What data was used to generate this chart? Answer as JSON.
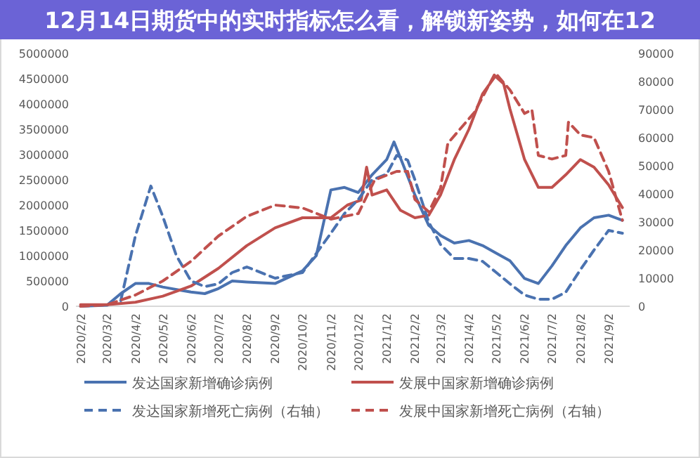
{
  "chart_data": {
    "type": "line",
    "title": "12月14日期货中的实时指标怎么看，解锁新姿势，如何在12",
    "xlim": [
      "2020-01-28",
      "2021-09-25"
    ],
    "xticks": [
      {
        "value": "2020-02-02",
        "label": "2020/2/2"
      },
      {
        "value": "2020-03-02",
        "label": "2020/3/2"
      },
      {
        "value": "2020-04-02",
        "label": "2020/4/2"
      },
      {
        "value": "2020-05-02",
        "label": "2020/5/2"
      },
      {
        "value": "2020-06-02",
        "label": "2020/6/2"
      },
      {
        "value": "2020-07-02",
        "label": "2020/7/2"
      },
      {
        "value": "2020-08-02",
        "label": "2020/8/2"
      },
      {
        "value": "2020-09-02",
        "label": "2020/9/2"
      },
      {
        "value": "2020-10-02",
        "label": "2020/10/2"
      },
      {
        "value": "2020-11-02",
        "label": "2020/11/2"
      },
      {
        "value": "2020-12-02",
        "label": "2020/12/2"
      },
      {
        "value": "2021-01-02",
        "label": "2021/1/2"
      },
      {
        "value": "2021-02-02",
        "label": "2021/2/2"
      },
      {
        "value": "2021-03-02",
        "label": "2021/3/2"
      },
      {
        "value": "2021-04-02",
        "label": "2021/4/2"
      },
      {
        "value": "2021-05-02",
        "label": "2021/5/2"
      },
      {
        "value": "2021-06-02",
        "label": "2021/6/2"
      },
      {
        "value": "2021-07-02",
        "label": "2021/7/2"
      },
      {
        "value": "2021-08-02",
        "label": "2021/8/2"
      },
      {
        "value": "2021-09-02",
        "label": "2021/9/2"
      }
    ],
    "ylim": [
      0,
      5000000
    ],
    "yticks": [
      0,
      500000,
      1000000,
      1500000,
      2000000,
      2500000,
      3000000,
      3500000,
      4000000,
      4500000,
      5000000
    ],
    "y2lim": [
      0,
      90000
    ],
    "y2ticks": [
      0,
      10000,
      20000,
      30000,
      40000,
      50000,
      60000,
      70000,
      80000,
      90000
    ],
    "legend": "bottom",
    "series": [
      {
        "name": "发达国家新增确诊病例",
        "color": "#4a72b0",
        "line_style": "solid",
        "x": [
          "2020-02-02",
          "2020-03-02",
          "2020-03-17",
          "2020-04-02",
          "2020-04-17",
          "2020-05-02",
          "2020-06-02",
          "2020-06-17",
          "2020-07-02",
          "2020-07-17",
          "2020-08-02",
          "2020-09-02",
          "2020-10-02",
          "2020-10-17",
          "2020-11-02",
          "2020-11-17",
          "2020-12-02",
          "2020-12-17",
          "2021-01-02",
          "2021-01-10",
          "2021-01-20",
          "2021-02-02",
          "2021-02-17",
          "2021-03-02",
          "2021-03-17",
          "2021-04-02",
          "2021-04-17",
          "2021-05-02",
          "2021-05-17",
          "2021-06-02",
          "2021-06-17",
          "2021-07-02",
          "2021-07-17",
          "2021-08-02",
          "2021-08-17",
          "2021-09-02",
          "2021-09-17"
        ],
        "values": [
          0,
          20000,
          250000,
          450000,
          450000,
          380000,
          280000,
          250000,
          350000,
          500000,
          480000,
          450000,
          700000,
          1000000,
          2300000,
          2350000,
          2250000,
          2600000,
          2900000,
          3250000,
          2800000,
          2200000,
          1600000,
          1400000,
          1250000,
          1300000,
          1200000,
          1050000,
          900000,
          550000,
          450000,
          800000,
          1200000,
          1550000,
          1750000,
          1800000,
          1700000
        ]
      },
      {
        "name": "发展中国家新增确诊病例",
        "color": "#c0504d",
        "line_style": "solid",
        "x": [
          "2020-02-02",
          "2020-03-02",
          "2020-04-02",
          "2020-05-02",
          "2020-06-02",
          "2020-07-02",
          "2020-08-02",
          "2020-09-02",
          "2020-10-02",
          "2020-11-02",
          "2020-11-20",
          "2020-12-05",
          "2020-12-11",
          "2020-12-17",
          "2021-01-02",
          "2021-01-17",
          "2021-02-02",
          "2021-02-17",
          "2021-03-02",
          "2021-03-17",
          "2021-04-02",
          "2021-04-17",
          "2021-05-01",
          "2021-05-10",
          "2021-05-17",
          "2021-06-02",
          "2021-06-17",
          "2021-07-02",
          "2021-07-17",
          "2021-08-02",
          "2021-08-17",
          "2021-09-02",
          "2021-09-17"
        ],
        "values": [
          30000,
          30000,
          80000,
          200000,
          400000,
          750000,
          1200000,
          1550000,
          1750000,
          1750000,
          2000000,
          2100000,
          2750000,
          2200000,
          2300000,
          1900000,
          1750000,
          1800000,
          2200000,
          2900000,
          3500000,
          4200000,
          4550000,
          4400000,
          3900000,
          2900000,
          2350000,
          2350000,
          2600000,
          2900000,
          2750000,
          2400000,
          1950000
        ]
      },
      {
        "name": "发达国家新增死亡病例（右轴）",
        "color": "#4a72b0",
        "line_style": "dashed",
        "axis": "y2",
        "x": [
          "2020-03-17",
          "2020-04-02",
          "2020-04-19",
          "2020-05-02",
          "2020-05-17",
          "2020-06-02",
          "2020-06-17",
          "2020-07-02",
          "2020-07-17",
          "2020-08-02",
          "2020-09-02",
          "2020-10-02",
          "2020-11-02",
          "2020-11-17",
          "2020-12-02",
          "2020-12-17",
          "2021-01-02",
          "2021-01-13",
          "2021-01-25",
          "2021-02-02",
          "2021-02-17",
          "2021-03-02",
          "2021-03-17",
          "2021-04-02",
          "2021-04-17",
          "2021-05-02",
          "2021-05-17",
          "2021-06-02",
          "2021-06-17",
          "2021-07-02",
          "2021-07-17",
          "2021-08-02",
          "2021-08-17",
          "2021-09-02",
          "2021-09-17"
        ],
        "values": [
          2000,
          25000,
          42800,
          32000,
          18000,
          9000,
          7000,
          8000,
          12000,
          14000,
          10000,
          12000,
          26000,
          33000,
          38000,
          45000,
          47000,
          53700,
          52000,
          45000,
          30000,
          22000,
          17000,
          17000,
          16000,
          12000,
          8000,
          4000,
          2500,
          2500,
          5000,
          13000,
          20000,
          27000,
          26000
        ]
      },
      {
        "name": "发展中国家新增死亡病例（右轴）",
        "color": "#c0504d",
        "line_style": "dashed",
        "axis": "y2",
        "x": [
          "2020-02-02",
          "2020-03-02",
          "2020-04-02",
          "2020-05-02",
          "2020-06-02",
          "2020-07-02",
          "2020-08-02",
          "2020-09-02",
          "2020-10-02",
          "2020-11-02",
          "2020-12-02",
          "2020-12-20",
          "2021-01-13",
          "2021-01-25",
          "2021-02-02",
          "2021-02-17",
          "2021-03-02",
          "2021-03-10",
          "2021-04-08",
          "2021-05-01",
          "2021-05-17",
          "2021-06-02",
          "2021-06-10",
          "2021-06-17",
          "2021-07-02",
          "2021-07-17",
          "2021-07-20",
          "2021-08-02",
          "2021-08-17",
          "2021-09-02",
          "2021-09-17"
        ],
        "values": [
          0,
          500,
          4000,
          9000,
          16000,
          25000,
          32000,
          36000,
          35000,
          31000,
          33000,
          45000,
          48000,
          48000,
          38000,
          33600,
          42000,
          58000,
          69000,
          83000,
          77000,
          68600,
          70000,
          53700,
          52400,
          53700,
          65500,
          61000,
          60000,
          48000,
          30600
        ]
      }
    ]
  }
}
